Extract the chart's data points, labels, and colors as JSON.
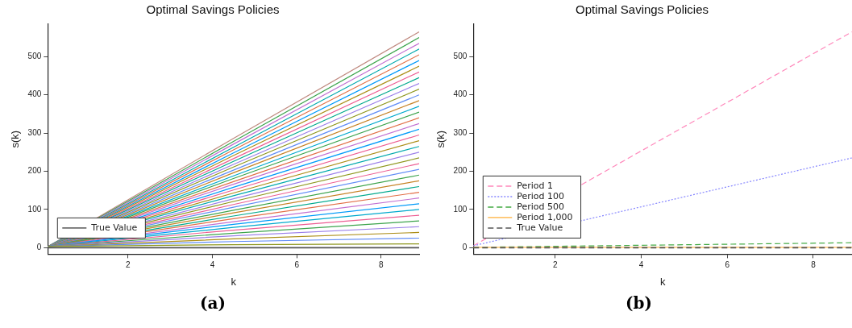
{
  "chart_data": [
    {
      "type": "line",
      "title": "Optimal Savings Policies",
      "xlabel": "k",
      "ylabel": "s(k)",
      "xlim": [
        0.1,
        8.9
      ],
      "xticks": [
        2,
        4,
        6,
        8
      ],
      "ylim": [
        -17,
        585
      ],
      "yticks": [
        0,
        100,
        200,
        300,
        400,
        500
      ],
      "grid": false,
      "legend": "bottom left",
      "marker": "none",
      "annotations": [
        "(a)"
      ],
      "x": [
        0.1,
        4.5,
        8.9
      ],
      "series": [
        {
          "color": "#c08a80",
          "values": [
            3,
            286,
            565
          ]
        },
        {
          "color": "#3da44d",
          "values": [
            3,
            278,
            550
          ]
        },
        {
          "color": "#c271d2",
          "values": [
            3,
            271,
            535
          ]
        },
        {
          "color": "#00a9ad",
          "values": [
            3,
            263,
            520
          ]
        },
        {
          "color": "#e26f46",
          "values": [
            3,
            256,
            505
          ]
        },
        {
          "color": "#009af9",
          "values": [
            3,
            248,
            490
          ]
        },
        {
          "color": "#ac8e18",
          "values": [
            3,
            241,
            475
          ]
        },
        {
          "color": "#ed5e93",
          "values": [
            3,
            233,
            460
          ]
        },
        {
          "color": "#00a98d",
          "values": [
            3,
            226,
            445
          ]
        },
        {
          "color": "#9b7fe9",
          "values": [
            3,
            218,
            430
          ]
        },
        {
          "color": "#8e971e",
          "values": [
            3,
            211,
            415
          ]
        },
        {
          "color": "#618df6",
          "values": [
            3,
            203,
            400
          ]
        },
        {
          "color": "#c68225",
          "values": [
            3,
            196,
            385
          ]
        },
        {
          "color": "#00a9cd",
          "values": [
            3,
            188,
            370
          ]
        },
        {
          "color": "#3da44d",
          "values": [
            3,
            181,
            355
          ]
        },
        {
          "color": "#e26f46",
          "values": [
            3,
            173,
            340
          ]
        },
        {
          "color": "#c271d2",
          "values": [
            3,
            166,
            325
          ]
        },
        {
          "color": "#009af9",
          "values": [
            3,
            158,
            310
          ]
        },
        {
          "color": "#ed5e93",
          "values": [
            3,
            151,
            295
          ]
        },
        {
          "color": "#ac8e18",
          "values": [
            3,
            143,
            280
          ]
        },
        {
          "color": "#00a9ad",
          "values": [
            3,
            136,
            265
          ]
        },
        {
          "color": "#9b7fe9",
          "values": [
            3,
            128,
            250
          ]
        },
        {
          "color": "#8e971e",
          "values": [
            3,
            121,
            235
          ]
        },
        {
          "color": "#ed5e93",
          "values": [
            3,
            113,
            220
          ]
        },
        {
          "color": "#618df6",
          "values": [
            3,
            106,
            205
          ]
        },
        {
          "color": "#3da44d",
          "values": [
            3,
            98,
            190
          ]
        },
        {
          "color": "#c68225",
          "values": [
            3,
            91,
            175
          ]
        },
        {
          "color": "#00a98d",
          "values": [
            3,
            83,
            160
          ]
        },
        {
          "color": "#e26f46",
          "values": [
            3,
            76,
            145
          ]
        },
        {
          "color": "#c271d2",
          "values": [
            3,
            68,
            130
          ]
        },
        {
          "color": "#009af9",
          "values": [
            3,
            61,
            115
          ]
        },
        {
          "color": "#00a9cd",
          "values": [
            3,
            53,
            100
          ]
        },
        {
          "color": "#ed5e93",
          "values": [
            3,
            46,
            85
          ]
        },
        {
          "color": "#3da44d",
          "values": [
            3,
            38,
            70
          ]
        },
        {
          "color": "#9b7fe9",
          "values": [
            3,
            31,
            55
          ]
        },
        {
          "color": "#ac8e18",
          "values": [
            3,
            23,
            40
          ]
        },
        {
          "color": "#618df6",
          "values": [
            3,
            16,
            25
          ]
        },
        {
          "color": "#8e971e",
          "values": [
            3,
            8,
            10
          ]
        },
        {
          "name": "True Value",
          "color": "#555555",
          "values": [
            0,
            0,
            0
          ]
        }
      ]
    },
    {
      "type": "line",
      "title": "Optimal Savings Policies",
      "xlabel": "k",
      "ylabel": "s(k)",
      "xlim": [
        0.1,
        8.9
      ],
      "xticks": [
        2,
        4,
        6,
        8
      ],
      "ylim": [
        -17,
        585
      ],
      "yticks": [
        0,
        100,
        200,
        300,
        400,
        500
      ],
      "grid": false,
      "legend": "bottom left",
      "marker": "none",
      "annotations": [
        "(b)"
      ],
      "x": [
        0.1,
        8.9
      ],
      "series": [
        {
          "name": "Period 1",
          "color": "#ff88bb",
          "line_style": "dashed",
          "values": [
            5,
            565
          ]
        },
        {
          "name": "Period 100",
          "color": "#8888ff",
          "line_style": "dotted",
          "values": [
            5,
            235
          ]
        },
        {
          "name": "Period 500",
          "color": "#44aa44",
          "line_style": "dashed",
          "values": [
            1,
            13
          ]
        },
        {
          "name": "Period 1,000",
          "color": "#ffbb55",
          "line_style": "solid",
          "values": [
            1,
            1
          ]
        },
        {
          "name": "True Value",
          "color": "#555555",
          "line_style": "dashed",
          "values": [
            0,
            0
          ]
        }
      ]
    }
  ]
}
